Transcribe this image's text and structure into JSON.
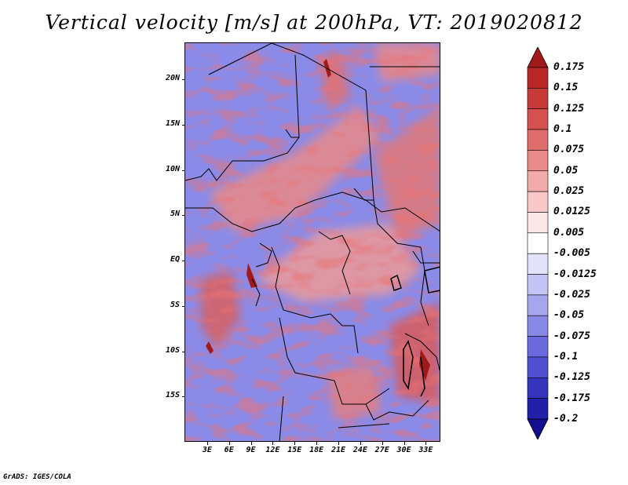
{
  "title": "Vertical velocity [m/s] at 200hPa, VT: 2019020812",
  "credit": "GrADS: IGES/COLA",
  "map": {
    "variable": "Vertical velocity",
    "units": "m/s",
    "level": "200hPa",
    "valid_time": "2019020812",
    "lon_range": [
      0,
      35
    ],
    "lat_range": [
      -20,
      24
    ],
    "y_ticks": [
      {
        "label": "20N",
        "lat": 20
      },
      {
        "label": "15N",
        "lat": 15
      },
      {
        "label": "10N",
        "lat": 10
      },
      {
        "label": "5N",
        "lat": 5
      },
      {
        "label": "EQ",
        "lat": 0
      },
      {
        "label": "5S",
        "lat": -5
      },
      {
        "label": "10S",
        "lat": -10
      },
      {
        "label": "15S",
        "lat": -15
      }
    ],
    "x_ticks": [
      {
        "label": "3E",
        "lon": 3
      },
      {
        "label": "6E",
        "lon": 6
      },
      {
        "label": "9E",
        "lon": 9
      },
      {
        "label": "12E",
        "lon": 12
      },
      {
        "label": "15E",
        "lon": 15
      },
      {
        "label": "18E",
        "lon": 18
      },
      {
        "label": "21E",
        "lon": 21
      },
      {
        "label": "24E",
        "lon": 24
      },
      {
        "label": "27E",
        "lon": 27
      },
      {
        "label": "30E",
        "lon": 30
      },
      {
        "label": "33E",
        "lon": 33
      }
    ]
  },
  "colorbar": {
    "levels": [
      "0.175",
      "0.15",
      "0.125",
      "0.1",
      "0.075",
      "0.05",
      "0.025",
      "0.0125",
      "0.005",
      "-0.005",
      "-0.0125",
      "-0.025",
      "-0.05",
      "-0.075",
      "-0.1",
      "-0.125",
      "-0.175",
      "-0.2"
    ],
    "colors": [
      "#a01a1a",
      "#b82828",
      "#c83a3a",
      "#d65050",
      "#e06c6c",
      "#ea8a8a",
      "#f2aaaa",
      "#f8c8c8",
      "#fce6e6",
      "#ffffff",
      "#e2e2fa",
      "#c4c4f4",
      "#a6a6ee",
      "#8888e6",
      "#6a6ade",
      "#5050d0",
      "#3434bc",
      "#2020a8",
      "#120e90"
    ]
  }
}
